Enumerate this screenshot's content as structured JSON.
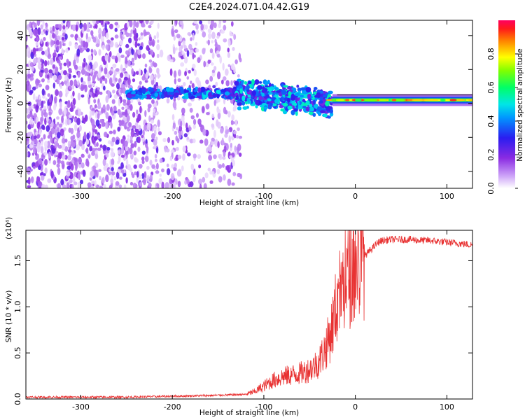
{
  "title": "C2E4.2024.071.04.42.G19",
  "chart_data": [
    {
      "type": "heatmap",
      "xlabel": "Height of straight line (km)",
      "ylabel": "Frequency (Hz)",
      "xlim": [
        -360,
        128
      ],
      "ylim": [
        -50,
        49
      ],
      "x_ticks": [
        -300,
        -200,
        -100,
        0,
        100
      ],
      "y_ticks": [
        -40,
        -20,
        0,
        20,
        40
      ],
      "colorbar": {
        "label": "Normalized spectral amplitude",
        "range": [
          0,
          1
        ],
        "ticks": [
          "0.0",
          "0.2",
          "0.4",
          "0.6",
          "0.8"
        ],
        "colormap": "rainbow (white→violet→blue→cyan→green→yellow→red)"
      },
      "features": [
        {
          "region": "noise speckle",
          "x": [
            -360,
            -125
          ],
          "freq": [
            -50,
            49
          ],
          "amplitude": [
            0.05,
            0.2
          ]
        },
        {
          "region": "signal track",
          "x": [
            -250,
            -130
          ],
          "freq": 6,
          "amplitude": [
            0.2,
            0.5
          ]
        },
        {
          "region": "signal spread",
          "x": [
            -130,
            -25
          ],
          "freq": [
            -12,
            12
          ],
          "amplitude": [
            0.2,
            0.55
          ]
        },
        {
          "region": "strong carrier",
          "x": [
            -25,
            128
          ],
          "freq": 2,
          "amplitude": [
            0.6,
            0.95
          ]
        }
      ]
    },
    {
      "type": "line",
      "xlabel": "Height of straight line (km)",
      "ylabel": "SNR (10 * v/v)",
      "scale_label": "(x10⁴)",
      "xlim": [
        -360,
        128
      ],
      "ylim": [
        0,
        1.83
      ],
      "x_ticks": [
        -300,
        -200,
        -100,
        0,
        100
      ],
      "y_ticks": [
        "0.0",
        "0.5",
        "1.0",
        "1.5"
      ],
      "y_tick_values": [
        0,
        0.5,
        1.0,
        1.5
      ],
      "series_color": "#e83232",
      "series": [
        {
          "x": [
            -360,
            -300,
            -250,
            -200,
            -150,
            -120,
            -110,
            -100,
            -90,
            -80,
            -70,
            -60,
            -50,
            -40,
            -35,
            -30,
            -25,
            -20,
            -15,
            -10,
            -5,
            0,
            5,
            10,
            15,
            20,
            25,
            30,
            40,
            50,
            60,
            70,
            80,
            90,
            100,
            110,
            120,
            128
          ],
          "y": [
            0.02,
            0.02,
            0.02,
            0.03,
            0.04,
            0.05,
            0.08,
            0.14,
            0.2,
            0.24,
            0.26,
            0.28,
            0.32,
            0.4,
            0.5,
            0.62,
            0.8,
            1.05,
            1.2,
            1.28,
            1.4,
            1.45,
            1.5,
            1.55,
            1.6,
            1.65,
            1.7,
            1.72,
            1.73,
            1.73,
            1.73,
            1.72,
            1.72,
            1.71,
            1.7,
            1.69,
            1.68,
            1.67
          ]
        }
      ]
    }
  ]
}
